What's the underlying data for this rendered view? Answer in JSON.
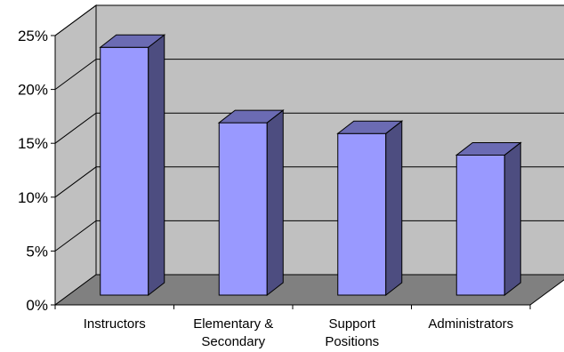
{
  "chart_data": {
    "type": "bar",
    "style": "3d-column",
    "categories": [
      [
        "Instructors"
      ],
      [
        "Elementary &",
        "Secondary"
      ],
      [
        "Support",
        "Positions"
      ],
      [
        "Administrators"
      ]
    ],
    "values": [
      23,
      16,
      15,
      13
    ],
    "ylim": [
      0,
      25
    ],
    "yticks": [
      "0%",
      "5%",
      "10%",
      "15%",
      "20%",
      "25%"
    ],
    "grid": true,
    "legend": "none",
    "colors": {
      "bar_front": "#9999ff",
      "bar_side": "#4d4d80",
      "bar_top": "#6b6bb3",
      "wall": "#c0c0c0",
      "floor": "#808080",
      "outline": "#000000"
    }
  }
}
